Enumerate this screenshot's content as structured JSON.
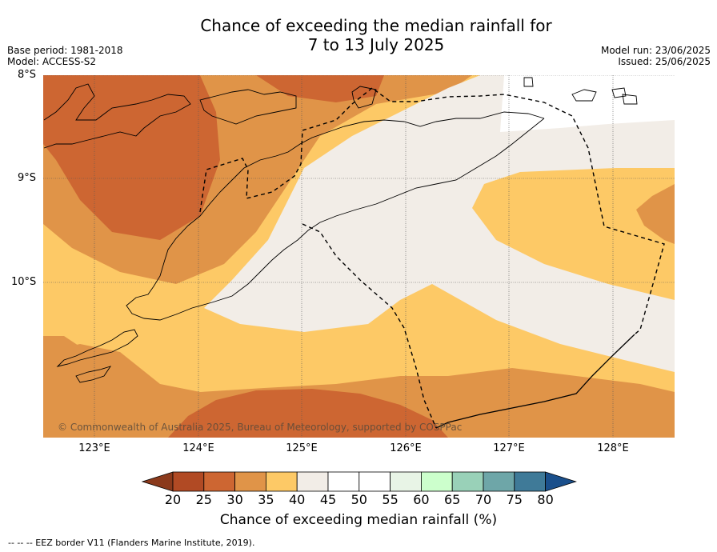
{
  "title_line1": "Chance of exceeding the median rainfall for",
  "title_line2": "7 to 13 July 2025",
  "base_period": "Base period: 1981-2018",
  "model": "Model: ACCESS-S2",
  "model_run": "Model run: 23/06/2025",
  "issued": "Issued: 25/06/2025",
  "lat_labels": [
    "8°S",
    "9°S",
    "10°S"
  ],
  "lon_labels": [
    "123°E",
    "124°E",
    "125°E",
    "126°E",
    "127°E",
    "128°E"
  ],
  "copyright": "© Commonwealth of Australia 2025, Bureau of Meteorology, supported by COSPPac",
  "colorbar": {
    "title": "Chance of exceeding median rainfall (%)",
    "ticks": [
      "20",
      "25",
      "30",
      "35",
      "40",
      "45",
      "50",
      "55",
      "60",
      "65",
      "70",
      "75",
      "80"
    ],
    "colors": [
      "#8b3a1c",
      "#b14a24",
      "#cd6632",
      "#e09448",
      "#fdc966",
      "#f2ede7",
      "#ffffff",
      "#ffffff",
      "#e8f4e6",
      "#ccffcc",
      "#99d1b8",
      "#6ea6a8",
      "#3f7a98",
      "#1a4f8b"
    ]
  },
  "footer": "-- -- -- EEZ border V11 (Flanders Marine Institute, 2019)."
}
